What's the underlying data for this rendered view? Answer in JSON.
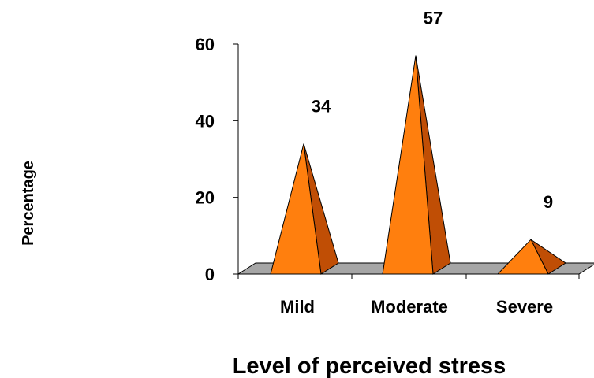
{
  "chart_data": {
    "type": "bar",
    "shape": "pyramid-3d",
    "categories": [
      "Mild",
      "Moderate",
      "Severe"
    ],
    "values": [
      34,
      57,
      9
    ],
    "data_labels": [
      "34",
      "57",
      "9"
    ],
    "title": "",
    "xlabel": "Level of perceived stress",
    "ylabel": "Percentage",
    "ylim": [
      0,
      60
    ],
    "yticks": [
      0,
      20,
      40,
      60
    ],
    "grid": false,
    "legend": "none",
    "colors": {
      "front_face": "#ff7f0e",
      "side_face": "#c04e05",
      "floor": "#a6a6a6",
      "floor_top": "#bfbfbf",
      "outline": "#000000"
    }
  }
}
